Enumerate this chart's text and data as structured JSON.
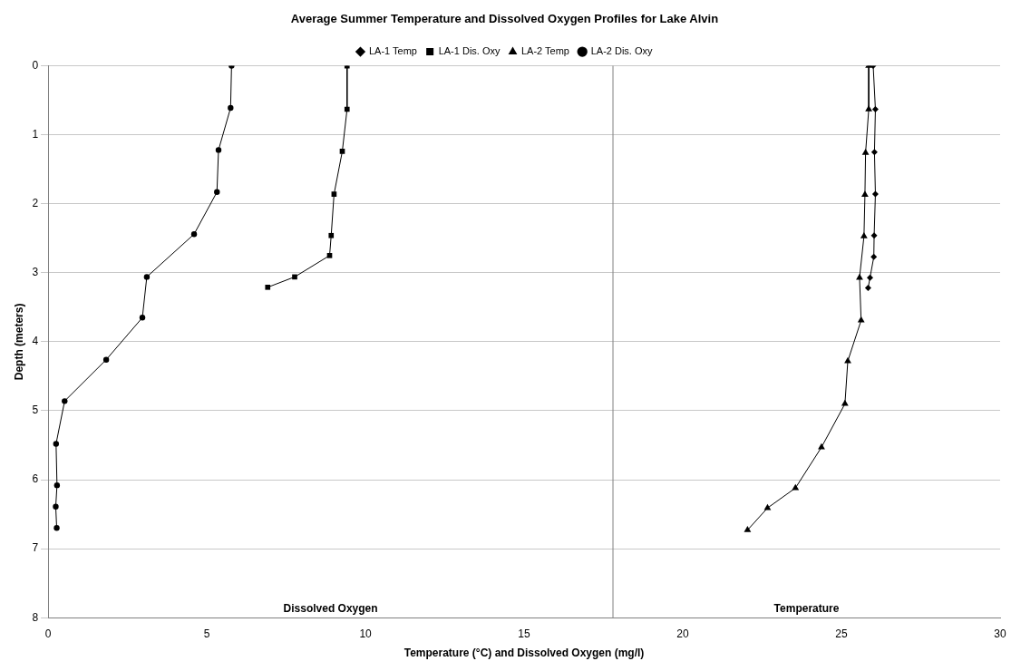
{
  "chart_data": {
    "type": "line",
    "title": "Average Summer Temperature and Dissolved Oxygen Profiles for Lake Alvin",
    "xlabel": "Temperature (°C) and Dissolved Oxygen (mg/l)",
    "ylabel": "Depth (meters)",
    "series": [
      {
        "name": "LA-1 Temp",
        "color": "#000000",
        "marker": "diamond",
        "x": [
          26.0,
          26.07,
          26.04,
          26.07,
          26.03,
          26.02,
          25.9,
          25.84
        ],
        "values": [
          0,
          0.63,
          1.25,
          1.86,
          2.46,
          2.77,
          3.07,
          3.22
        ]
      },
      {
        "name": "LA-1 Dis. Oxy",
        "color": "#000000",
        "marker": "square",
        "x": [
          9.42,
          9.42,
          9.27,
          9.01,
          8.92,
          8.87,
          7.77,
          6.92
        ],
        "values": [
          0,
          0.63,
          1.24,
          1.86,
          2.46,
          2.75,
          3.06,
          3.21
        ]
      },
      {
        "name": "LA-2 Temp",
        "color": "#000000",
        "marker": "triangle",
        "x": [
          25.86,
          25.86,
          25.76,
          25.74,
          25.71,
          25.57,
          25.62,
          25.2,
          25.11,
          24.37,
          23.55,
          22.67,
          22.04
        ],
        "values": [
          0,
          0.63,
          1.26,
          1.87,
          2.47,
          3.07,
          3.69,
          4.28,
          4.9,
          5.53,
          6.12,
          6.41,
          6.73
        ]
      },
      {
        "name": "LA-2 Dis. Oxy",
        "color": "#000000",
        "marker": "circle",
        "x": [
          5.78,
          5.75,
          5.37,
          5.32,
          4.6,
          3.11,
          2.97,
          1.83,
          0.52,
          0.25,
          0.28,
          0.24,
          0.27
        ],
        "values": [
          0,
          0.61,
          1.22,
          1.83,
          2.44,
          3.06,
          3.65,
          4.26,
          4.86,
          5.48,
          6.08,
          6.39,
          6.7
        ]
      }
    ],
    "xlim": [
      0,
      30
    ],
    "xticks": [
      0,
      5,
      10,
      15,
      20,
      25,
      30
    ],
    "ylim": [
      8,
      0
    ],
    "yticks": [
      0,
      1,
      2,
      3,
      4,
      5,
      6,
      7,
      8
    ],
    "grid": "y",
    "legend": "top",
    "line_style": "solid",
    "ref_lines": [
      {
        "axis": "x",
        "value": 17.8,
        "color": "#808080"
      }
    ],
    "annotations": [
      "Dissolved Oxygen",
      "Temperature"
    ]
  }
}
